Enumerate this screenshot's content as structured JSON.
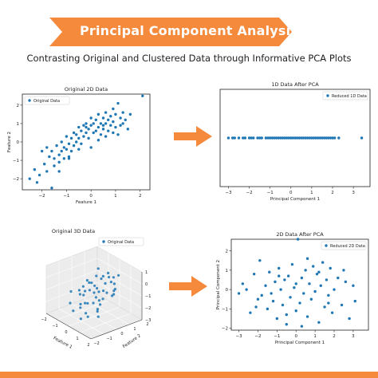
{
  "banner": {
    "title": "Principal Component Analysis",
    "color": "#f58a3c"
  },
  "subtitle": "Contrasting Original and Clustered Data through Informative PCA Plots",
  "point_color": "#1f77b4",
  "arrow_color": "#f58a3c",
  "chart_data": [
    {
      "type": "scatter",
      "title": "Original 2D Data",
      "xlabel": "Feature 1",
      "ylabel": "Feature 2",
      "xlim": [
        -2.8,
        2.4
      ],
      "ylim": [
        -2.6,
        2.6
      ],
      "xticks": [
        -2,
        -1,
        0,
        1,
        2
      ],
      "yticks": [
        -2,
        -1,
        0,
        1,
        2
      ],
      "legend": {
        "position": "top-left",
        "entries": [
          "Original Data"
        ]
      },
      "series": [
        {
          "name": "Original Data",
          "x": [
            -2.5,
            -2.3,
            -2.2,
            -2.1,
            -2.0,
            -1.9,
            -1.8,
            -1.8,
            -1.7,
            -1.6,
            -1.6,
            -1.5,
            -1.5,
            -1.4,
            -1.3,
            -1.3,
            -1.2,
            -1.2,
            -1.1,
            -1.1,
            -1.0,
            -1.0,
            -0.9,
            -0.9,
            -0.8,
            -0.8,
            -0.7,
            -0.7,
            -0.6,
            -0.6,
            -0.5,
            -0.5,
            -0.4,
            -0.4,
            -0.3,
            -0.3,
            -0.2,
            -0.2,
            -0.1,
            -0.1,
            0.0,
            0.0,
            0.1,
            0.1,
            0.2,
            0.2,
            0.3,
            0.3,
            0.4,
            0.4,
            0.5,
            0.5,
            0.6,
            0.6,
            0.7,
            0.7,
            0.8,
            0.8,
            0.9,
            0.9,
            1.0,
            1.0,
            1.1,
            1.2,
            1.2,
            1.3,
            1.3,
            1.4,
            1.5,
            1.6,
            -0.5,
            0.3,
            0.6,
            -0.2,
            0.9,
            -1.3,
            0.0,
            0.5,
            1.1,
            -0.9,
            2.1
          ],
          "y": [
            -2.0,
            -1.5,
            -2.2,
            -1.8,
            -0.5,
            -1.2,
            -0.3,
            -1.6,
            -0.8,
            -0.5,
            -2.5,
            -0.9,
            -1.3,
            -0.2,
            -0.7,
            -1.1,
            0.0,
            -0.5,
            -0.9,
            -0.3,
            -0.4,
            0.3,
            -0.1,
            -0.8,
            0.2,
            -0.5,
            0.5,
            -0.2,
            0.4,
            0.0,
            0.8,
            0.2,
            0.6,
            -0.1,
            0.9,
            0.3,
            0.5,
            1.0,
            0.7,
            0.2,
            0.9,
            1.3,
            0.5,
            1.0,
            1.2,
            0.6,
            0.8,
            1.5,
            1.0,
            0.4,
            1.3,
            0.7,
            1.6,
            1.0,
            1.2,
            0.6,
            1.4,
            0.9,
            1.8,
            1.1,
            1.5,
            0.8,
            2.1,
            1.3,
            0.9,
            1.6,
            1.0,
            1.2,
            0.7,
            1.5,
            -0.4,
            0.1,
            0.3,
            0.8,
            0.5,
            -1.6,
            -0.3,
            0.9,
            0.4,
            -0.9,
            2.5
          ]
        }
      ]
    },
    {
      "type": "scatter",
      "title": "1D Data After PCA",
      "xlabel": "Principal Component 1",
      "xlim": [
        -3.4,
        3.8
      ],
      "ylim": [
        -1,
        1
      ],
      "xticks": [
        -3,
        -2,
        -1,
        0,
        1,
        2,
        3
      ],
      "yticks": [],
      "legend": {
        "position": "top-right",
        "entries": [
          "Reduced 1D Data"
        ]
      },
      "series": [
        {
          "name": "Reduced 1D Data",
          "x": [
            -3.0,
            -2.8,
            -2.7,
            -2.5,
            -2.3,
            -2.2,
            -2.0,
            -1.9,
            -1.8,
            -1.6,
            -1.5,
            -1.4,
            -1.2,
            -1.1,
            -1.0,
            -0.9,
            -0.8,
            -0.7,
            -0.6,
            -0.5,
            -0.4,
            -0.3,
            -0.2,
            -0.1,
            0.0,
            0.1,
            0.2,
            0.3,
            0.4,
            0.5,
            0.6,
            0.7,
            0.8,
            0.9,
            1.0,
            1.1,
            1.2,
            1.3,
            1.4,
            1.5,
            1.6,
            1.7,
            1.8,
            1.9,
            2.0,
            2.1,
            2.3,
            3.4
          ],
          "y": [
            0,
            0,
            0,
            0,
            0,
            0,
            0,
            0,
            0,
            0,
            0,
            0,
            0,
            0,
            0,
            0,
            0,
            0,
            0,
            0,
            0,
            0,
            0,
            0,
            0,
            0,
            0,
            0,
            0,
            0,
            0,
            0,
            0,
            0,
            0,
            0,
            0,
            0,
            0,
            0,
            0,
            0,
            0,
            0,
            0,
            0,
            0,
            0
          ]
        }
      ]
    },
    {
      "type": "scatter3d",
      "title": "Original 3D Data",
      "xlabel": "Feature 1",
      "ylabel": "Feature 2",
      "zlabel": "Feature 3",
      "xlim": [
        -2,
        2
      ],
      "ylim": [
        -2,
        2
      ],
      "zlim": [
        -3,
        1
      ],
      "xticks": [
        -2,
        -1,
        0,
        1,
        2
      ],
      "yticks": [
        -2,
        -1,
        0,
        1,
        2
      ],
      "zticks": [
        -3,
        -2,
        -1,
        0,
        1
      ],
      "legend": {
        "position": "top-right",
        "entries": [
          "Original Data"
        ]
      },
      "series": [
        {
          "name": "Original Data",
          "x": [
            -1.5,
            -1.2,
            -1.0,
            -0.8,
            -0.6,
            -0.5,
            -0.3,
            -0.2,
            0.0,
            0.1,
            0.2,
            0.4,
            0.5,
            0.7,
            0.8,
            1.0,
            1.2,
            1.4,
            -1.0,
            -0.4,
            0.3,
            0.9,
            -0.7,
            0.6,
            1.1,
            -1.3,
            0.0,
            0.5,
            -0.2,
            1.5,
            -0.9,
            0.3,
            0.8,
            -0.5,
            1.2,
            0.1,
            -1.1,
            0.7,
            -0.3,
            1.0,
            0.4,
            -0.6,
            0.2,
            0.9,
            -0.1,
            1.3,
            -0.8,
            0.6
          ],
          "y": [
            -0.5,
            0.2,
            -1.0,
            0.5,
            -0.3,
            1.0,
            -0.8,
            0.4,
            0.0,
            -0.6,
            0.7,
            -0.2,
            0.9,
            -1.1,
            0.3,
            -0.4,
            0.6,
            -0.9,
            1.2,
            0.0,
            -1.3,
            0.8,
            -0.1,
            0.2,
            -0.7,
            0.6,
            1.1,
            -0.5,
            -0.9,
            0.1,
            0.4,
            0.9,
            -0.3,
            -1.2,
            0.5,
            -0.8,
            -0.2,
            1.3,
            0.3,
            -0.6,
            -1.0,
            0.7,
            0.2,
            -0.1,
            0.8,
            0.4,
            -0.4,
            1.0
          ],
          "z": [
            -1.5,
            -1.2,
            -2.0,
            -0.8,
            -1.4,
            -0.5,
            -1.8,
            -0.9,
            -1.0,
            -1.6,
            -0.4,
            -1.1,
            -0.2,
            -2.2,
            -0.7,
            -1.3,
            -0.3,
            -1.9,
            0.0,
            -1.0,
            -2.5,
            -0.1,
            -1.2,
            -0.6,
            -1.7,
            -0.9,
            0.2,
            -1.4,
            -2.0,
            -0.5,
            -0.8,
            0.1,
            -1.1,
            -2.3,
            -0.4,
            -1.5,
            -1.3,
            0.3,
            -0.7,
            -1.6,
            -2.1,
            -0.2,
            -0.9,
            -1.0,
            0.0,
            -0.6,
            -1.4,
            0.2
          ]
        }
      ]
    },
    {
      "type": "scatter",
      "title": "2D Data After PCA",
      "xlabel": "Principal Component 1",
      "ylabel": "Principal Component 2",
      "xlim": [
        -3.4,
        3.8
      ],
      "ylim": [
        -2.1,
        2.6
      ],
      "xticks": [
        -3,
        -2,
        -1,
        0,
        1,
        2,
        3
      ],
      "yticks": [
        -2,
        -1,
        0,
        1,
        2
      ],
      "legend": {
        "position": "top-right",
        "entries": [
          "Reduced 2D Data"
        ]
      },
      "series": [
        {
          "name": "Reduced 2D Data",
          "x": [
            -3.0,
            -2.8,
            -2.6,
            -2.4,
            -2.2,
            -2.0,
            -1.9,
            -1.8,
            -1.6,
            -1.5,
            -1.4,
            -1.2,
            -1.1,
            -1.0,
            -0.9,
            -0.8,
            -0.7,
            -0.6,
            -0.5,
            -0.4,
            -0.3,
            -0.2,
            -0.1,
            0.0,
            0.1,
            0.2,
            0.3,
            0.4,
            0.5,
            0.6,
            0.7,
            0.8,
            0.9,
            1.0,
            1.1,
            1.2,
            1.3,
            1.4,
            1.5,
            1.6,
            1.7,
            1.8,
            1.9,
            2.0,
            2.2,
            2.4,
            2.6,
            2.8,
            3.0,
            3.1,
            -1.3,
            0.6,
            -0.5,
            1.2,
            -2.1,
            0.3,
            1.7,
            -0.9,
            0.0,
            2.5
          ],
          "y": [
            -0.2,
            0.3,
            0.0,
            -1.2,
            0.8,
            -0.5,
            1.5,
            -0.3,
            0.2,
            -1.0,
            0.9,
            -0.6,
            0.4,
            -1.5,
            1.1,
            0.0,
            -0.8,
            0.5,
            -1.8,
            0.7,
            -0.4,
            1.3,
            0.1,
            -1.1,
            2.6,
            -0.7,
            0.6,
            -0.2,
            1.0,
            -1.4,
            0.3,
            -0.5,
            1.2,
            -0.1,
            0.8,
            -1.7,
            0.2,
            1.4,
            -0.9,
            0.5,
            -0.3,
            1.1,
            -1.2,
            0.0,
            0.6,
            -0.8,
            0.4,
            -1.5,
            0.2,
            -0.6,
            -0.2,
            1.6,
            -1.3,
            0.9,
            -0.9,
            -1.9,
            -0.7,
            0.7,
            0.3,
            1.0
          ]
        }
      ]
    }
  ]
}
